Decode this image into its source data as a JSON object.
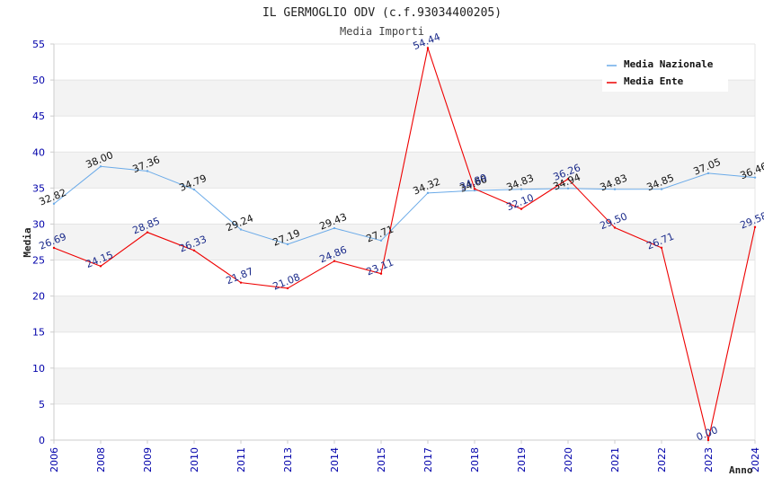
{
  "chart_data": {
    "type": "line",
    "title": "IL GERMOGLIO ODV (c.f.93034400205)",
    "subtitle": "Media Importi",
    "xlabel": "Anno",
    "ylabel": "Media",
    "ylim": [
      0,
      55
    ],
    "yticks": [
      0,
      5,
      10,
      15,
      20,
      25,
      30,
      35,
      40,
      45,
      50,
      55
    ],
    "categories": [
      "2006",
      "2008",
      "2009",
      "2010",
      "2011",
      "2013",
      "2014",
      "2015",
      "2017",
      "2018",
      "2019",
      "2020",
      "2021",
      "2022",
      "2023",
      "2024"
    ],
    "series": [
      {
        "name": "Media Nazionale",
        "color": "#6aaae8",
        "values": [
          32.82,
          38.0,
          37.36,
          34.79,
          29.24,
          27.19,
          29.43,
          27.71,
          34.32,
          34.66,
          34.83,
          34.94,
          34.83,
          34.85,
          37.05,
          36.46
        ],
        "labels": [
          "32.82",
          "38.00",
          "37.36",
          "34.79",
          "29.24",
          "27.19",
          "29.43",
          "27.71",
          "34.32",
          "34.66",
          "34.83",
          "34.94",
          "34.83",
          "34.85",
          "37.05",
          "36.46"
        ]
      },
      {
        "name": "Media Ente",
        "color": "#ee0000",
        "values": [
          26.69,
          24.15,
          28.85,
          26.33,
          21.87,
          21.08,
          24.86,
          23.11,
          54.44,
          34.89,
          32.1,
          36.26,
          29.5,
          26.71,
          0.0,
          29.58
        ],
        "labels": [
          "26.69",
          "24.15",
          "28.85",
          "26.33",
          "21.87",
          "21.08",
          "24.86",
          "23.11",
          "54.44",
          "34.89",
          "32.10",
          "36.26",
          "29.50",
          "26.71",
          "0.00",
          "29.58"
        ]
      }
    ],
    "legend_position": "top-right",
    "grid": true
  }
}
